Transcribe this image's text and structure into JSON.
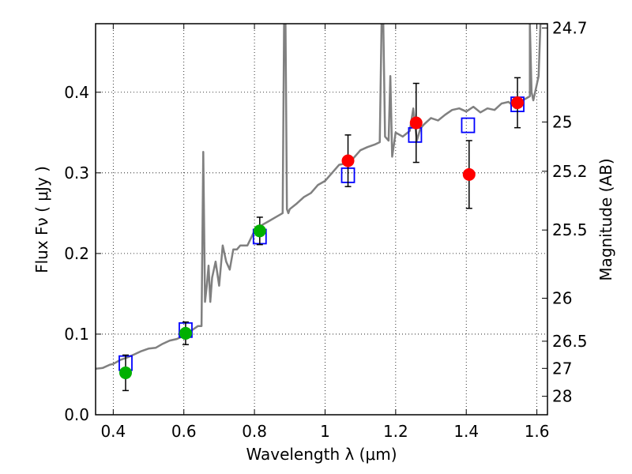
{
  "chart_data": {
    "type": "scatter",
    "xlabel": "Wavelength  λ (μm)",
    "ylabel": "Flux  Fν  ( μJy )",
    "ylabel_right": "Magnitude (AB)",
    "xlim": [
      0.35,
      1.63
    ],
    "ylim": [
      0.0,
      0.485
    ],
    "grid": true,
    "x_ticks": [
      0.4,
      0.6,
      0.8,
      1.0,
      1.2,
      1.4,
      1.6
    ],
    "x_tick_labels": [
      "0.4",
      "0.6",
      "0.8",
      "1",
      "1.2",
      "1.4",
      "1.6"
    ],
    "y_ticks": [
      0.0,
      0.1,
      0.2,
      0.3,
      0.4
    ],
    "y_tick_labels": [
      "0.0",
      "0.1",
      "0.2",
      "0.3",
      "0.4"
    ],
    "right_ticks": [
      {
        "flux": 0.4797,
        "label": "24.7"
      },
      {
        "flux": 0.3631,
        "label": "25"
      },
      {
        "flux": 0.302,
        "label": "25.2"
      },
      {
        "flux": 0.2291,
        "label": "25.5"
      },
      {
        "flux": 0.1445,
        "label": "26"
      },
      {
        "flux": 0.0912,
        "label": "26.5"
      },
      {
        "flux": 0.0575,
        "label": "27"
      },
      {
        "flux": 0.0229,
        "label": "28"
      }
    ],
    "series": [
      {
        "name": "model_spectrum",
        "style": "line",
        "color": "#808080",
        "x": [
          0.35,
          0.37,
          0.39,
          0.4,
          0.42,
          0.44,
          0.46,
          0.48,
          0.5,
          0.52,
          0.54,
          0.56,
          0.58,
          0.6,
          0.62,
          0.64,
          0.65,
          0.655,
          0.66,
          0.665,
          0.67,
          0.675,
          0.68,
          0.69,
          0.7,
          0.71,
          0.72,
          0.73,
          0.74,
          0.75,
          0.76,
          0.78,
          0.8,
          0.82,
          0.84,
          0.86,
          0.88,
          0.884,
          0.888,
          0.892,
          0.896,
          0.9,
          0.92,
          0.94,
          0.96,
          0.98,
          1.0,
          1.02,
          1.04,
          1.06,
          1.08,
          1.1,
          1.12,
          1.14,
          1.155,
          1.16,
          1.165,
          1.17,
          1.18,
          1.185,
          1.19,
          1.2,
          1.22,
          1.24,
          1.25,
          1.26,
          1.27,
          1.28,
          1.3,
          1.32,
          1.34,
          1.36,
          1.38,
          1.4,
          1.42,
          1.44,
          1.46,
          1.48,
          1.5,
          1.52,
          1.54,
          1.56,
          1.58,
          1.58,
          1.585,
          1.59,
          1.6,
          1.605,
          1.61,
          1.63
        ],
        "y": [
          0.057,
          0.058,
          0.062,
          0.063,
          0.068,
          0.071,
          0.075,
          0.079,
          0.082,
          0.083,
          0.088,
          0.092,
          0.094,
          0.098,
          0.104,
          0.11,
          0.11,
          0.326,
          0.14,
          0.16,
          0.185,
          0.14,
          0.17,
          0.19,
          0.16,
          0.21,
          0.19,
          0.18,
          0.205,
          0.205,
          0.21,
          0.21,
          0.228,
          0.235,
          0.24,
          0.245,
          0.25,
          0.485,
          0.485,
          0.255,
          0.25,
          0.255,
          0.262,
          0.27,
          0.275,
          0.285,
          0.29,
          0.3,
          0.31,
          0.312,
          0.318,
          0.328,
          0.332,
          0.335,
          0.338,
          0.485,
          0.485,
          0.345,
          0.34,
          0.42,
          0.32,
          0.35,
          0.345,
          0.352,
          0.38,
          0.34,
          0.355,
          0.36,
          0.368,
          0.365,
          0.372,
          0.378,
          0.38,
          0.376,
          0.382,
          0.375,
          0.38,
          0.378,
          0.386,
          0.388,
          0.38,
          0.39,
          0.395,
          0.485,
          0.4,
          0.39,
          0.41,
          0.42,
          0.485,
          0.485
        ]
      },
      {
        "name": "model_photometry",
        "style": "open-square",
        "color": "#0000ff",
        "x": [
          0.435,
          0.605,
          0.815,
          1.065,
          1.255,
          1.405,
          1.545
        ],
        "y": [
          0.064,
          0.105,
          0.221,
          0.297,
          0.347,
          0.359,
          0.385
        ]
      },
      {
        "name": "observed_green",
        "style": "filled-circle",
        "color": "#00b000",
        "x": [
          0.435,
          0.605,
          0.815
        ],
        "y": [
          0.052,
          0.101,
          0.228
        ],
        "err": [
          0.022,
          0.014,
          0.017
        ]
      },
      {
        "name": "observed_red",
        "style": "filled-circle",
        "color": "#ff0000",
        "x": [
          1.065,
          1.258,
          1.408,
          1.545
        ],
        "y": [
          0.315,
          0.362,
          0.298,
          0.387
        ],
        "err": [
          0.032,
          0.049,
          0.042,
          0.031
        ]
      }
    ]
  }
}
